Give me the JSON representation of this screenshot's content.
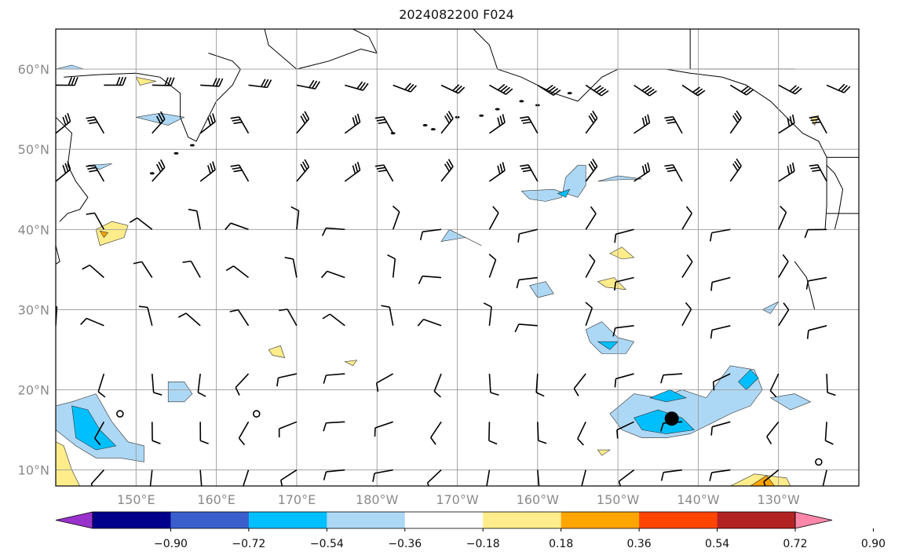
{
  "title": "2024082200 F024",
  "map": {
    "lat_labels": [
      "60°N",
      "50°N",
      "40°N",
      "30°N",
      "20°N",
      "10°N"
    ],
    "lon_labels": [
      "150°E",
      "160°E",
      "170°E",
      "180°W",
      "170°W",
      "160°W",
      "150°W",
      "140°W",
      "130°W"
    ],
    "extent": {
      "lon_min": 140,
      "lon_max": 240,
      "lat_min": 8,
      "lat_max": 65
    },
    "marker": {
      "lon": 216.7,
      "lat": 16.4
    }
  },
  "colorbar": {
    "colors": [
      "#9932cc",
      "#00008b",
      "#3a5fcd",
      "#00bfff",
      "#add8f5",
      "#ffffff",
      "#ffec8b",
      "#ffa500",
      "#ff4500",
      "#b22222",
      "#ff88aa"
    ],
    "tick_labels": [
      "−0.90",
      "−0.72",
      "−0.54",
      "−0.36",
      "−0.18",
      "0.18",
      "0.36",
      "0.54",
      "0.72",
      "0.90"
    ]
  }
}
